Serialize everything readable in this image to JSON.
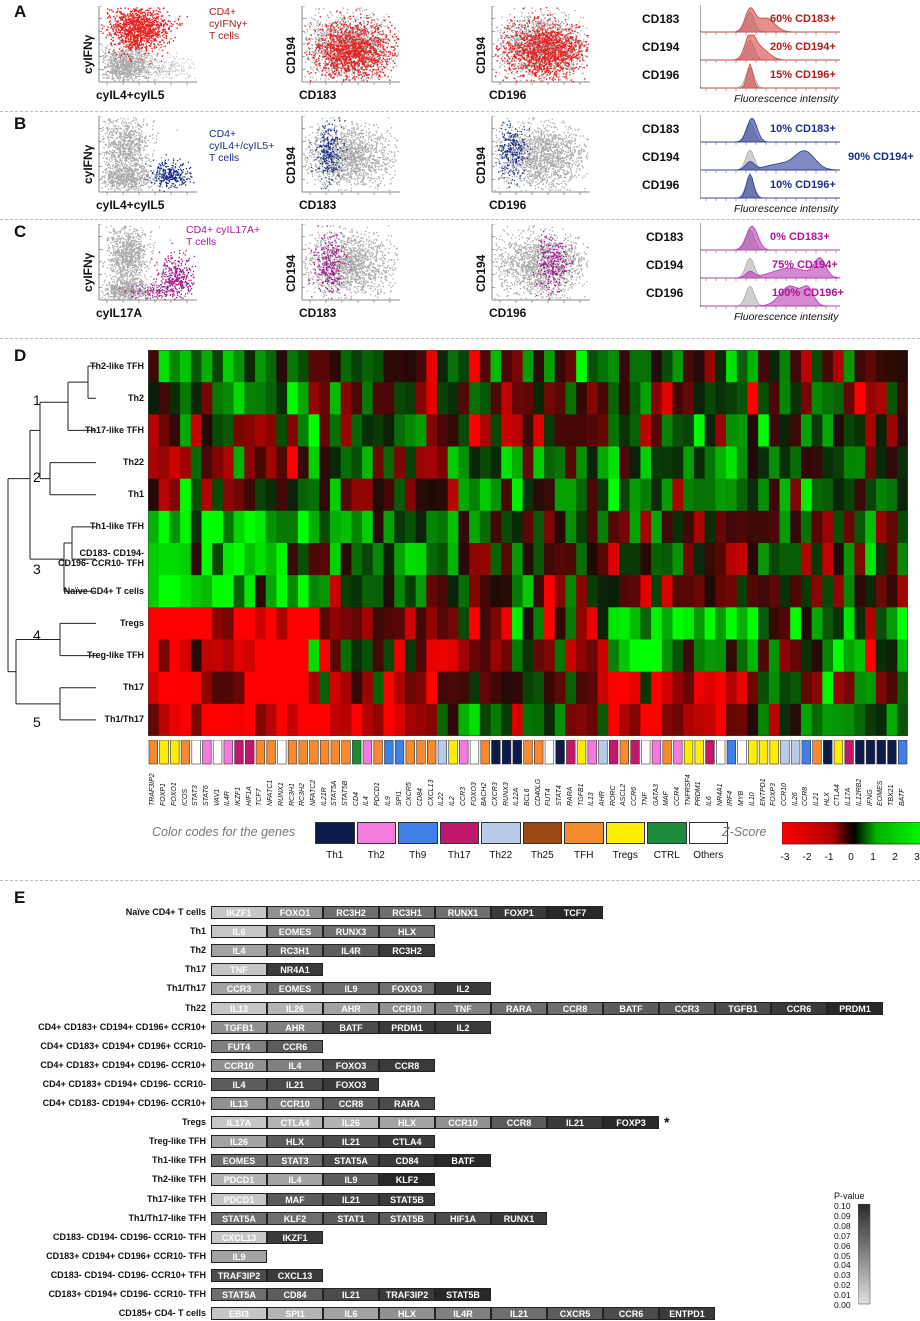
{
  "panel_labels": [
    "A",
    "B",
    "C",
    "D",
    "E"
  ],
  "flow_rows": [
    {
      "population": [
        "CD4+",
        "cyIFNγ+",
        "T cells"
      ],
      "population_color": "#b01c1c",
      "highlight_color": "#e32222",
      "gate": "ifng",
      "axes": [
        {
          "x": "cyIL4+cyIL5",
          "y": "cyIFNγ"
        },
        {
          "x": "CD183",
          "y": "CD194"
        },
        {
          "x": "CD196",
          "y": "CD194"
        }
      ],
      "histograms": [
        {
          "marker": "CD183",
          "pct_text": "60% CD183+"
        },
        {
          "marker": "CD194",
          "pct_text": "20% CD194+"
        },
        {
          "marker": "CD196",
          "pct_text": "15% CD196+"
        }
      ],
      "fi_label": "Fluorescence intensity",
      "fill_color": "#d64545"
    },
    {
      "population": [
        "CD4+",
        "cyIL4+/cyIL5+",
        "T cells"
      ],
      "population_color": "#1b2e8c",
      "highlight_color": "#1b2e8c",
      "gate": "il4",
      "axes": [
        {
          "x": "cyIL4+cyIL5",
          "y": "cyIFNγ"
        },
        {
          "x": "CD183",
          "y": "CD194"
        },
        {
          "x": "CD196",
          "y": "CD194"
        }
      ],
      "histograms": [
        {
          "marker": "CD183",
          "pct_text": "10% CD183+"
        },
        {
          "marker": "CD194",
          "pct_text": "90% CD194+"
        },
        {
          "marker": "CD196",
          "pct_text": "10% CD196+"
        }
      ],
      "fi_label": "Fluorescence intensity",
      "fill_color": "#2b3b9a"
    },
    {
      "population": [
        "CD4+ cyIL17A+",
        "T cells"
      ],
      "population_color": "#b0139a",
      "highlight_color": "#a2138e",
      "gate": "il17",
      "axes": [
        {
          "x": "cyIL17A",
          "y": "cyIFNγ"
        },
        {
          "x": "CD183",
          "y": "CD194"
        },
        {
          "x": "CD196",
          "y": "CD194"
        }
      ],
      "histograms": [
        {
          "marker": "CD183",
          "pct_text": "0% CD183+"
        },
        {
          "marker": "CD194",
          "pct_text": "75% CD194+"
        },
        {
          "marker": "CD196",
          "pct_text": "100% CD196+"
        }
      ],
      "fi_label": "Fluorescence intensity",
      "fill_color": "#b63cb0"
    }
  ],
  "heatmap": {
    "rows": [
      "Th2-like TFH",
      "Th2",
      "Th17-like TFH",
      "Th22",
      "Th1",
      "Th1-like TFH",
      "CD183- CD194- CD196- CCR10- TFH",
      "Naïve CD4+ T cells",
      "Tregs",
      "Treg-like TFH",
      "Th17",
      "Th1/Th17"
    ],
    "row_label_lines": [
      [
        "Th2-like TFH"
      ],
      [
        "Th2"
      ],
      [
        "Th17-like TFH"
      ],
      [
        "Th22"
      ],
      [
        "Th1"
      ],
      [
        "Th1-like TFH"
      ],
      [
        "CD183- CD194-",
        "CD196- CCR10- TFH"
      ],
      [
        "Naïve CD4+ T cells"
      ],
      [
        "Tregs"
      ],
      [
        "Treg-like TFH"
      ],
      [
        "Th17"
      ],
      [
        "Th1/Th17"
      ]
    ],
    "cluster_numbers": [
      "1",
      "2",
      "3",
      "4",
      "5"
    ],
    "genes": [
      "TRAF3IP2",
      "FOXP1",
      "FOXO1",
      "ICOS",
      "STAT3",
      "STAT6",
      "VAV1",
      "IL4R",
      "IKZF1",
      "HIF1A",
      "TCF7",
      "NFATC1",
      "RUNX1",
      "RC3H1",
      "RC3H2",
      "NFATC2",
      "IL21R",
      "STAT5A",
      "STAT5B",
      "CD4",
      "IL4",
      "PDCD1",
      "IL9",
      "SPI1",
      "CXCR5",
      "CD84",
      "CXCL13",
      "IL22",
      "IL2",
      "CCR3",
      "FOXO3",
      "BACH2",
      "CXCR3",
      "RUNX3",
      "IL12A",
      "BCL6",
      "CD40LG",
      "FUT4",
      "STAT4",
      "RARA",
      "TGFB1",
      "IL13",
      "AHR",
      "RORC",
      "ASCL2",
      "CCR6",
      "TNF",
      "GATA3",
      "MAF",
      "CCR4",
      "TNFRSF4",
      "PRDM1",
      "IL6",
      "NR4A1",
      "IRF4",
      "MYB",
      "IL10",
      "ENTPD1",
      "FOXP3",
      "CCR10",
      "IL26",
      "CCR8",
      "IL21",
      "HLX",
      "CTLA4",
      "IL17A",
      "IL12RB2",
      "IFNG",
      "EOMES",
      "TBX21",
      "BATF"
    ],
    "gene_codes": [
      "TFH",
      "Tregs",
      "Tregs",
      "TFH",
      "Others",
      "Th2",
      "Others",
      "Th2",
      "Th17",
      "Th17",
      "TFH",
      "TFH",
      "Others",
      "TFH",
      "TFH",
      "TFH",
      "TFH",
      "TFH",
      "TFH",
      "CTRL",
      "Th2",
      "TFH",
      "Th9",
      "Th9",
      "TFH",
      "TFH",
      "TFH",
      "Th22",
      "Tregs",
      "Th2",
      "Others",
      "TFH",
      "Th1",
      "Th1",
      "Th1",
      "TFH",
      "TFH",
      "Others",
      "Th1",
      "Th17",
      "Tregs",
      "Th2",
      "Th22",
      "Th17",
      "TFH",
      "Th17",
      "Others",
      "Th2",
      "TFH",
      "Th2",
      "Tregs",
      "Tregs",
      "Th17",
      "Others",
      "Th9",
      "Others",
      "Tregs",
      "Tregs",
      "Tregs",
      "Th22",
      "Th22",
      "Th9",
      "TFH",
      "Th1",
      "Tregs",
      "Th17",
      "Th1",
      "Th1",
      "Th1",
      "Th1",
      "Th9"
    ],
    "legend_title": "Color codes for the genes",
    "categories": [
      {
        "name": "Th1",
        "color": "#0d1b4a"
      },
      {
        "name": "Th2",
        "color": "#f27bdc"
      },
      {
        "name": "Th9",
        "color": "#3f7fe8"
      },
      {
        "name": "Th17",
        "color": "#c2186b"
      },
      {
        "name": "Th22",
        "color": "#b9cbe8"
      },
      {
        "name": "Th25",
        "color": "#9a4a12"
      },
      {
        "name": "TFH",
        "color": "#f58a2e"
      },
      {
        "name": "Tregs",
        "color": "#ffee00"
      },
      {
        "name": "CTRL",
        "color": "#1b8a3b"
      },
      {
        "name": "Others",
        "color": "#ffffff"
      }
    ],
    "zscore_title": "Z-Score",
    "zscore_ticks": [
      "-3",
      "-2",
      "-1",
      "0",
      "1",
      "2",
      "3"
    ]
  },
  "panel_e": {
    "rows": [
      {
        "label": "Naïve CD4+ T cells",
        "genes": [
          "IKZF1",
          "FOXO1",
          "RC3H2",
          "RC3H1",
          "RUNX1",
          "FOXP1",
          "TCF7"
        ],
        "shades": [
          0.01,
          0.04,
          0.06,
          0.06,
          0.06,
          0.09,
          0.1
        ]
      },
      {
        "label": "Th1",
        "genes": [
          "IL6",
          "EOMES",
          "RUNX3",
          "HLX"
        ],
        "shades": [
          0.01,
          0.05,
          0.06,
          0.06
        ]
      },
      {
        "label": "Th2",
        "genes": [
          "IL4",
          "RC3H1",
          "IL4R",
          "RC3H2"
        ],
        "shades": [
          0.03,
          0.06,
          0.07,
          0.09
        ]
      },
      {
        "label": "Th17",
        "genes": [
          "TNF",
          "NR4A1"
        ],
        "shades": [
          0.01,
          0.09
        ]
      },
      {
        "label": "Th1/Th17",
        "genes": [
          "CCR3",
          "EOMES",
          "IL9",
          "FOXO3",
          "IL2"
        ],
        "shades": [
          0.03,
          0.06,
          0.06,
          0.06,
          0.09
        ]
      },
      {
        "label": "Th22",
        "genes": [
          "IL13",
          "IL26",
          "AHR",
          "CCR10",
          "TNF",
          "RARA",
          "CCR8",
          "BATF",
          "CCR3",
          "TGFB1",
          "CCR6",
          "PRDM1"
        ],
        "shades": [
          0.01,
          0.02,
          0.03,
          0.04,
          0.05,
          0.06,
          0.06,
          0.07,
          0.07,
          0.08,
          0.09,
          0.1
        ]
      },
      {
        "label": "CD4+ CD183+ CD194+ CD196+ CCR10+",
        "genes": [
          "TGFB1",
          "AHR",
          "BATF",
          "PRDM1",
          "IL2"
        ],
        "shades": [
          0.04,
          0.05,
          0.08,
          0.09,
          0.09
        ]
      },
      {
        "label": "CD4+ CD183+ CD194+ CD196+ CCR10-",
        "genes": [
          "FUT4",
          "CCR6"
        ],
        "shades": [
          0.05,
          0.07
        ]
      },
      {
        "label": "CD4+ CD183+ CD194+ CD196- CCR10+",
        "genes": [
          "CCR10",
          "IL4",
          "FOXO3",
          "CCR8"
        ],
        "shades": [
          0.04,
          0.05,
          0.08,
          0.09
        ]
      },
      {
        "label": "CD4+ CD183+ CD194+ CD196- CCR10-",
        "genes": [
          "IL4",
          "IL21",
          "FOXO3"
        ],
        "shades": [
          0.07,
          0.08,
          0.09
        ]
      },
      {
        "label": "CD4+ CD183- CD194+ CD196- CCR10+",
        "genes": [
          "IL13",
          "CCR10",
          "CCR8",
          "RARA"
        ],
        "shades": [
          0.04,
          0.05,
          0.07,
          0.08
        ]
      },
      {
        "label": "Tregs",
        "genes": [
          "IL17A",
          "CTLA4",
          "IL26",
          "HLX",
          "CCR10",
          "CCR8",
          "IL21",
          "FOXP3"
        ],
        "shades": [
          0.01,
          0.02,
          0.02,
          0.03,
          0.04,
          0.07,
          0.09,
          0.1
        ],
        "star": "*"
      },
      {
        "label": "Treg-like TFH",
        "genes": [
          "IL26",
          "HLX",
          "IL21",
          "CTLA4"
        ],
        "shades": [
          0.03,
          0.07,
          0.08,
          0.09
        ]
      },
      {
        "label": "Th1-like TFH",
        "genes": [
          "EOMES",
          "STAT3",
          "STAT5A",
          "CD84",
          "BATF"
        ],
        "shades": [
          0.06,
          0.06,
          0.08,
          0.09,
          0.1
        ]
      },
      {
        "label": "Th2-like TFH",
        "genes": [
          "PDCD1",
          "IL4",
          "IL9",
          "KLF2"
        ],
        "shades": [
          0.02,
          0.03,
          0.07,
          0.1
        ]
      },
      {
        "label": "Th17-like TFH",
        "genes": [
          "PDCD1",
          "MAF",
          "IL21",
          "STAT5B"
        ],
        "shades": [
          0.01,
          0.07,
          0.08,
          0.09
        ]
      },
      {
        "label": "Th1/Th17-like TFH",
        "genes": [
          "STAT5A",
          "KLF2",
          "STAT1",
          "STAT5B",
          "HIF1A",
          "RUNX1"
        ],
        "shades": [
          0.06,
          0.06,
          0.07,
          0.07,
          0.08,
          0.09
        ]
      },
      {
        "label": "CD183- CD194- CD196- CCR10- TFH",
        "genes": [
          "CXCL13",
          "IKZF1"
        ],
        "shades": [
          0.01,
          0.09
        ]
      },
      {
        "label": "CD183+ CD194+ CD196+ CCR10- TFH",
        "genes": [
          "IL9"
        ],
        "shades": [
          0.03
        ]
      },
      {
        "label": "CD183- CD194- CD196- CCR10+ TFH",
        "genes": [
          "TRAF3IP2",
          "CXCL13"
        ],
        "shades": [
          0.08,
          0.09
        ]
      },
      {
        "label": "CD183+ CD194+ CD196- CCR10- TFH",
        "genes": [
          "STAT5A",
          "CD84",
          "IL21",
          "TRAF3IP2",
          "STAT5B"
        ],
        "shades": [
          0.06,
          0.07,
          0.08,
          0.09,
          0.1
        ]
      },
      {
        "label": "CD185+ CD4- T cells",
        "genes": [
          "EBI3",
          "SPI1",
          "IL6",
          "HLX",
          "IL4R",
          "IL21",
          "CXCR5",
          "CCR6",
          "ENTPD1"
        ],
        "shades": [
          0.01,
          0.02,
          0.03,
          0.04,
          0.05,
          0.06,
          0.07,
          0.08,
          0.09
        ]
      }
    ],
    "pvalue_title": "P-value",
    "pvalue_ticks": [
      "0.10",
      "0.09",
      "0.08",
      "0.07",
      "0.06",
      "0.05",
      "0.04",
      "0.03",
      "0.02",
      "0.01",
      "0.00"
    ]
  }
}
